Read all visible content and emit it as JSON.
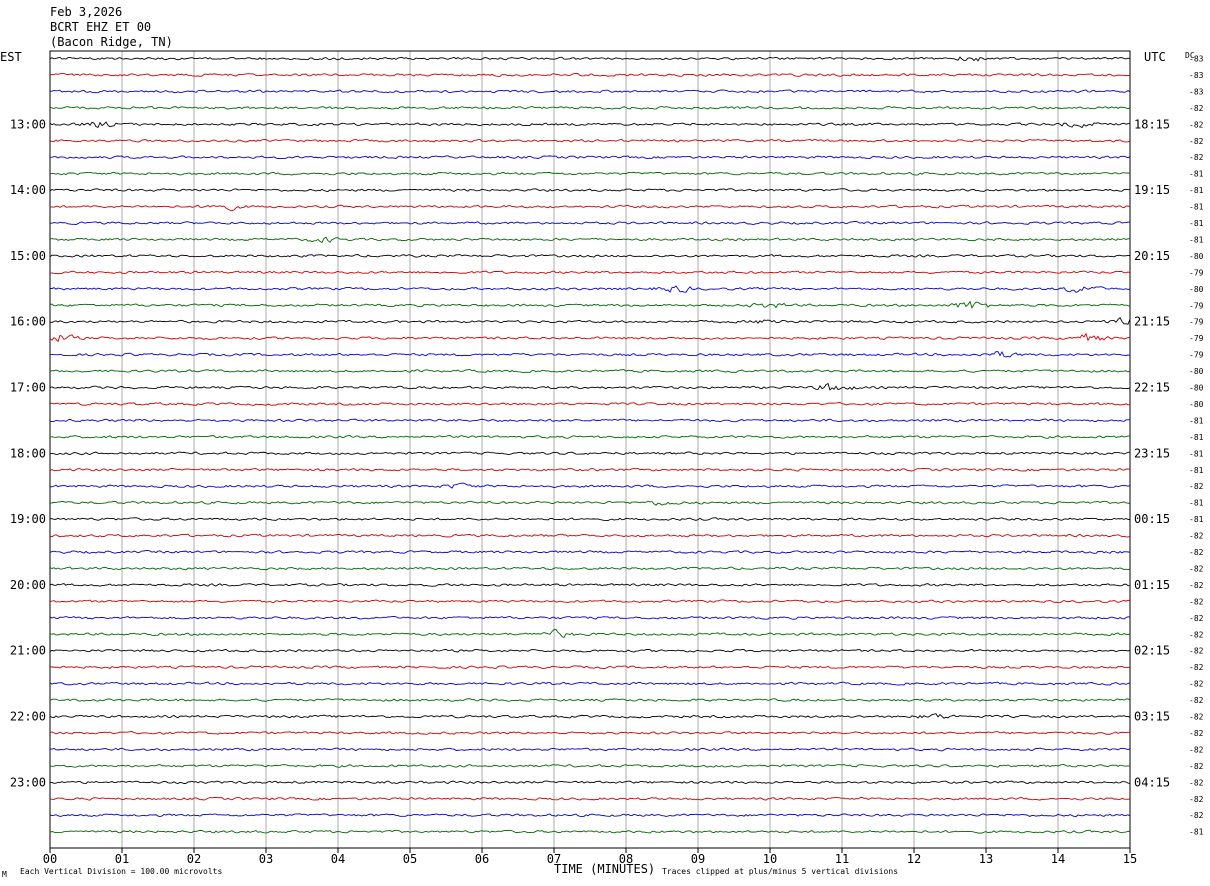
{
  "header": {
    "date": "Feb 3,2026",
    "station": "BCRT EHZ ET 00",
    "location": "(Bacon Ridge, TN)"
  },
  "axes": {
    "left_timezone": "EST",
    "right_timezone": "UTC",
    "dc_label": "DC",
    "xlabel": "TIME (MINUTES)"
  },
  "footer": {
    "left_note": "Each Vertical Division =  100.00 microvolts",
    "right_note": "Traces clipped at plus/minus 5 vertical divisions",
    "corner_mark": "M"
  },
  "colors": {
    "trace_cycle": [
      "#000000",
      "#cc0000",
      "#0000cc",
      "#006600"
    ],
    "grid": "#000000"
  },
  "chart_data": {
    "type": "line",
    "title": "BCRT EHZ ET 00",
    "xlabel": "TIME (MINUTES)",
    "xlim": [
      0,
      15
    ],
    "x_ticks": [
      "00",
      "01",
      "02",
      "03",
      "04",
      "05",
      "06",
      "07",
      "08",
      "09",
      "10",
      "11",
      "12",
      "13",
      "14",
      "15"
    ],
    "row_interval_minutes": 15,
    "rows_per_hour": 4,
    "left_hour_labels": [
      "13:00",
      "14:00",
      "15:00",
      "16:00",
      "17:00",
      "18:00",
      "19:00",
      "20:00",
      "21:00",
      "22:00",
      "23:00"
    ],
    "right_hour_labels": [
      "18:15",
      "19:15",
      "20:15",
      "21:15",
      "22:15",
      "23:15",
      "00:15",
      "01:15",
      "02:15",
      "03:15",
      "04:15"
    ],
    "dc_offsets": [
      -83,
      -83,
      -83,
      -82,
      -82,
      -82,
      -82,
      -81,
      -81,
      -81,
      -81,
      -81,
      -80,
      -79,
      -80,
      -79,
      -79,
      -79,
      -79,
      -80,
      -80,
      -80,
      -81,
      -81,
      -81,
      -81,
      -82,
      -81,
      -81,
      -82,
      -82,
      -82,
      -82,
      -82,
      -82,
      -82,
      -82,
      -82,
      -82,
      -82,
      -82,
      -82,
      -82,
      -82,
      -82,
      -82,
      -82,
      -81
    ],
    "events": [
      {
        "row": 0,
        "minute": 12.8,
        "amplitude": 1.6
      },
      {
        "row": 4,
        "minute": 0.7,
        "amplitude": 1.8
      },
      {
        "row": 4,
        "minute": 14.3,
        "amplitude": 1.7
      },
      {
        "row": 9,
        "minute": 2.4,
        "amplitude": 2.2
      },
      {
        "row": 11,
        "minute": 3.8,
        "amplitude": 1.6
      },
      {
        "row": 14,
        "minute": 8.7,
        "amplitude": 2.2
      },
      {
        "row": 14,
        "minute": 14.3,
        "amplitude": 2.6
      },
      {
        "row": 15,
        "minute": 10.0,
        "amplitude": 1.8
      },
      {
        "row": 15,
        "minute": 12.8,
        "amplitude": 3.2
      },
      {
        "row": 16,
        "minute": 10.0,
        "amplitude": 1.6
      },
      {
        "row": 16,
        "minute": 14.9,
        "amplitude": 3.5
      },
      {
        "row": 17,
        "minute": 0.1,
        "amplitude": 3.0
      },
      {
        "row": 17,
        "minute": 14.4,
        "amplitude": 2.6
      },
      {
        "row": 18,
        "minute": 13.2,
        "amplitude": 2.0
      },
      {
        "row": 20,
        "minute": 10.9,
        "amplitude": 3.0
      },
      {
        "row": 26,
        "minute": 5.7,
        "amplitude": 1.5
      },
      {
        "row": 27,
        "minute": 8.5,
        "amplitude": 1.5
      },
      {
        "row": 35,
        "minute": 7.0,
        "amplitude": 2.4
      },
      {
        "row": 40,
        "minute": 12.3,
        "amplitude": 1.5
      }
    ]
  }
}
